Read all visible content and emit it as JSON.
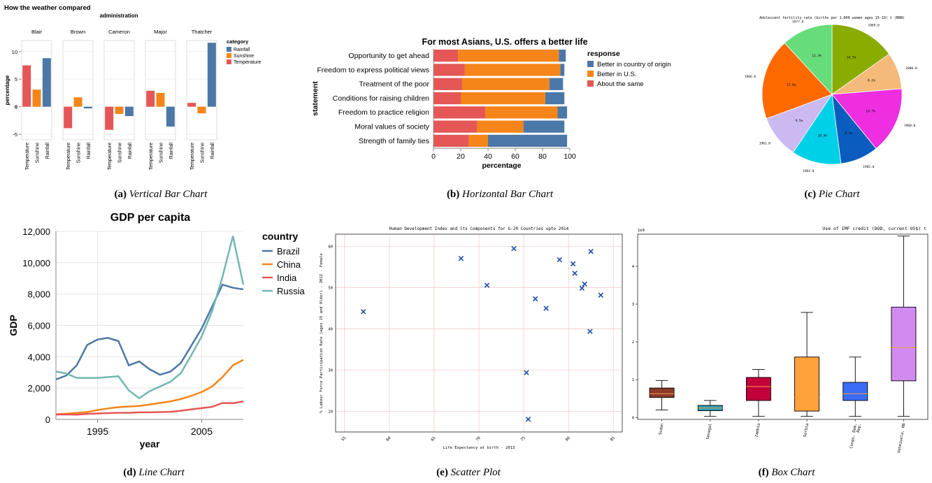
{
  "figure": {
    "captions": [
      {
        "letter": "(a)",
        "text": "Vertical Bar Chart"
      },
      {
        "letter": "(b)",
        "text": "Horizontal Bar Chart"
      },
      {
        "letter": "(c)",
        "text": "Pie Chart"
      },
      {
        "letter": "(d)",
        "text": "Line Chart"
      },
      {
        "letter": "(e)",
        "text": "Scatter Plot"
      },
      {
        "letter": "(f)",
        "text": "Box Chart"
      }
    ]
  },
  "colors": {
    "blue": "#4c78a8",
    "orange": "#f58518",
    "red": "#e45756",
    "teal": "#72b7b2",
    "scatter": "#1f4fa8"
  },
  "chart_data": [
    {
      "type": "bar",
      "title": "How the weather compared",
      "facet_label": "administration",
      "ylabel": "percentage",
      "ylim": [
        -6,
        12
      ],
      "yticks": [
        10,
        5,
        0,
        -5
      ],
      "legend_title": "category",
      "legend": [
        "Rainfall",
        "Sunshine",
        "Temperature"
      ],
      "categories": [
        "Temperature",
        "Sunshine",
        "Rainfall"
      ],
      "facets": [
        {
          "name": "Blair",
          "values": [
            7.5,
            3.1,
            8.8
          ]
        },
        {
          "name": "Brown",
          "values": [
            -3.9,
            1.7,
            -0.3
          ]
        },
        {
          "name": "Cameron",
          "values": [
            -4.2,
            -1.3,
            -1.7
          ]
        },
        {
          "name": "Major",
          "values": [
            2.9,
            2.5,
            -3.6
          ]
        },
        {
          "name": "Thatcher",
          "values": [
            0.7,
            -1.2,
            11.6
          ]
        }
      ]
    },
    {
      "type": "bar",
      "orientation": "horizontal",
      "title": "For most Asians, U.S. offers a better life",
      "xlabel": "percentage",
      "ylabel": "statement",
      "xlim": [
        0,
        100
      ],
      "xticks": [
        0,
        20,
        40,
        60,
        80,
        100
      ],
      "legend_title": "response",
      "legend": [
        "Better in country of origin",
        "Better in U.S.",
        "About the same"
      ],
      "categories": [
        "Opportunity to get ahead",
        "Freedom to express political views",
        "Treatment of the poor",
        "Conditions for raising children",
        "Freedom to practice religion",
        "Moral values of society",
        "Strength of family ties"
      ],
      "series": [
        {
          "name": "About the same",
          "values": [
            18,
            23,
            21,
            20,
            38,
            32,
            26
          ]
        },
        {
          "name": "Better in U.S.",
          "values": [
            74,
            70,
            64,
            62,
            53,
            34,
            14
          ]
        },
        {
          "name": "Better in country of origin",
          "values": [
            5,
            3,
            10,
            14,
            7,
            30,
            58
          ]
        }
      ]
    },
    {
      "type": "pie",
      "title": "Adolescent fertility rate (births per 1,000 women ages 15-19) t (BRN)",
      "slices": [
        {
          "label": "1969.0",
          "value": 14.5,
          "pct": "14.5%"
        },
        {
          "label": "2000.0",
          "value": 8.1,
          "pct": "8.1%"
        },
        {
          "label": "1960.0",
          "value": 14.7,
          "pct": "14.7%"
        },
        {
          "label": "1982.0",
          "value": 8.4,
          "pct": "8.4%"
        },
        {
          "label": "1964.0",
          "value": 10.9,
          "pct": "10.9%"
        },
        {
          "label": "1981.0",
          "value": 9.5,
          "pct": "9.5%"
        },
        {
          "label": "1966.0",
          "value": 17.9,
          "pct": "17.9%"
        },
        {
          "label": "1977.0",
          "value": 11.3,
          "pct": "11.3%"
        }
      ]
    },
    {
      "type": "line",
      "title": "GDP per capita",
      "xlabel": "year",
      "ylabel": "GDP",
      "xlim": [
        1991,
        2009
      ],
      "ylim": [
        0,
        12000
      ],
      "xticks": [
        1995,
        2005
      ],
      "yticks": [
        "0",
        "2,000",
        "4,000",
        "6,000",
        "8,000",
        "10,000",
        "12,000"
      ],
      "legend_title": "country",
      "x": [
        1991,
        1992,
        1993,
        1994,
        1995,
        1996,
        1997,
        1998,
        1999,
        2000,
        2001,
        2002,
        2003,
        2004,
        2005,
        2006,
        2007,
        2008,
        2009
      ],
      "series": [
        {
          "name": "Brazil",
          "values": [
            2550,
            2800,
            3450,
            4750,
            5100,
            5200,
            5000,
            3450,
            3700,
            3200,
            2850,
            3050,
            3600,
            4700,
            5800,
            7200,
            8600,
            8400,
            8300
          ]
        },
        {
          "name": "China",
          "values": [
            330,
            360,
            420,
            470,
            600,
            700,
            780,
            820,
            860,
            950,
            1050,
            1150,
            1300,
            1500,
            1750,
            2100,
            2700,
            3450,
            3800
          ]
        },
        {
          "name": "India",
          "values": [
            310,
            320,
            300,
            350,
            380,
            400,
            420,
            420,
            450,
            450,
            470,
            480,
            550,
            640,
            720,
            800,
            1050,
            1030,
            1150
          ]
        },
        {
          "name": "Russia",
          "values": [
            3050,
            2930,
            2650,
            2650,
            2650,
            2700,
            2750,
            1850,
            1350,
            1800,
            2100,
            2400,
            2950,
            4100,
            5300,
            6900,
            9100,
            11700,
            8600
          ]
        }
      ]
    },
    {
      "type": "scatter",
      "title": "Human Development Index and its Components for G-20 Countries upto 2014",
      "xlabel": "Life Expectancy at birth - 2013",
      "ylabel": "% Labour Force Participation Rate (ages 15 and Older) - 2012 - Female",
      "xlim": [
        54,
        86
      ],
      "ylim": [
        15,
        63
      ],
      "xticks": [
        55,
        60,
        65,
        70,
        75,
        80,
        85
      ],
      "yticks": [
        20,
        30,
        40,
        50,
        60
      ],
      "points": [
        {
          "x": 57.1,
          "y": 44.2
        },
        {
          "x": 68,
          "y": 57.1
        },
        {
          "x": 70.9,
          "y": 50.6
        },
        {
          "x": 73.9,
          "y": 59.5
        },
        {
          "x": 75.3,
          "y": 29.4
        },
        {
          "x": 75.5,
          "y": 18.1
        },
        {
          "x": 76.3,
          "y": 47.3
        },
        {
          "x": 77.5,
          "y": 45
        },
        {
          "x": 79,
          "y": 56.8
        },
        {
          "x": 80.5,
          "y": 55.8
        },
        {
          "x": 80.7,
          "y": 53.5
        },
        {
          "x": 81.5,
          "y": 49.9
        },
        {
          "x": 81.8,
          "y": 50.9
        },
        {
          "x": 82.4,
          "y": 39.4
        },
        {
          "x": 82.5,
          "y": 58.8
        },
        {
          "x": 83.6,
          "y": 48.2
        }
      ]
    },
    {
      "type": "box",
      "title": "Use of IMF credit (DOD, current US$) t",
      "scale_label": "1e9",
      "ylim": [
        -0.05,
        4.85
      ],
      "yticks": [
        0,
        1,
        2,
        3,
        4
      ],
      "boxes": [
        {
          "name": "Sudan",
          "min": 0.2,
          "q1": 0.53,
          "median": 0.63,
          "q3": 0.78,
          "max": 0.98,
          "color": "#8b3a2a"
        },
        {
          "name": "Senegal",
          "min": 0.03,
          "q1": 0.18,
          "median": 0.25,
          "q3": 0.32,
          "max": 0.45,
          "color": "#2a9db8"
        },
        {
          "name": "Zambia",
          "min": 0.03,
          "q1": 0.45,
          "median": 0.82,
          "q3": 1.06,
          "max": 1.27,
          "color": "#c2003a"
        },
        {
          "name": "Serbia",
          "min": 0.03,
          "q1": 0.17,
          "median": 0.53,
          "q3": 1.6,
          "max": 2.78,
          "color": "#ffa23a"
        },
        {
          "name": "Congo, Dem. Rep.",
          "min": 0.03,
          "q1": 0.45,
          "median": 0.63,
          "q3": 0.93,
          "max": 1.6,
          "color": "#3a6cf5"
        },
        {
          "name": "Venezuela, RB",
          "min": 0.03,
          "q1": 0.97,
          "median": 1.85,
          "q3": 2.92,
          "max": 4.8,
          "color": "#d18bf0"
        }
      ]
    }
  ]
}
